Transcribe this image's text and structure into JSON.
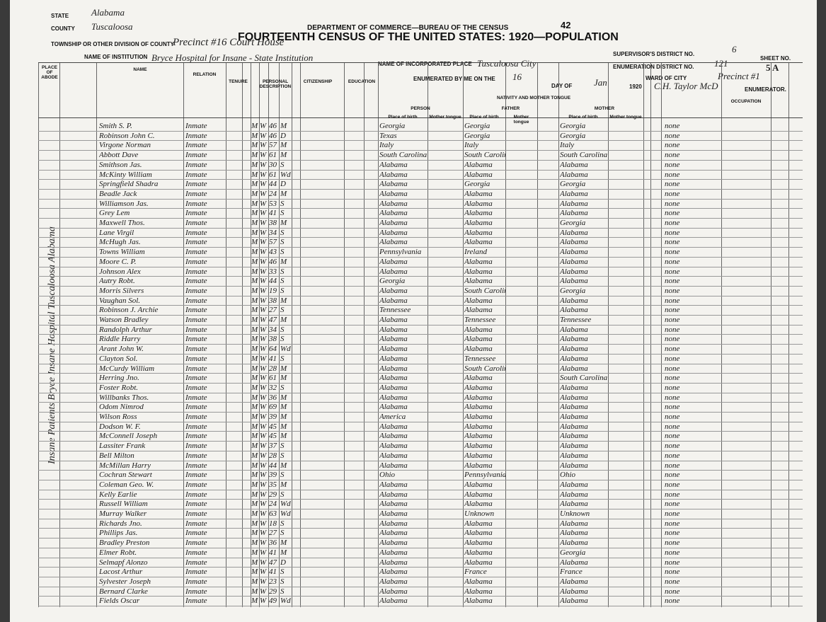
{
  "header": {
    "state_label": "STATE",
    "state": "Alabama",
    "county_label": "COUNTY",
    "county": "Tuscaloosa",
    "township_label": "TOWNSHIP OR OTHER DIVISION OF COUNTY",
    "township": "Precinct #16 Court House",
    "institution_label": "NAME OF INSTITUTION",
    "institution": "Bryce Hospital for Insane - State Institution",
    "department": "DEPARTMENT OF COMMERCE—BUREAU OF THE CENSUS",
    "title": "FOURTEENTH CENSUS OF THE UNITED STATES: 1920—POPULATION",
    "page_number": "42",
    "place_label": "NAME OF INCORPORATED PLACE",
    "place": "Tuscaloosa City",
    "enumerated_label": "ENUMERATED BY ME ON THE",
    "day": "16",
    "day_of_label": "DAY OF",
    "month": "Jan",
    "year": "1920",
    "supervisor_label": "SUPERVISOR'S DISTRICT NO.",
    "supervisor": "6",
    "enumeration_label": "ENUMERATION DISTRICT NO.",
    "enumeration": "121",
    "sheet_label": "SHEET NO.",
    "sheet": "5 A",
    "ward_label": "WARD OF CITY",
    "ward": "Precinct #1",
    "enumerator": "C.H. Taylor McD",
    "enumerator_label": "ENUMERATOR."
  },
  "columns": {
    "abode": "PLACE OF ABODE",
    "name": "NAME",
    "relation": "RELATION",
    "tenure": "TENURE",
    "personal": "PERSONAL DESCRIPTION",
    "citizenship": "CITIZENSHIP",
    "education": "EDUCATION",
    "nativity": "NATIVITY AND MOTHER TONGUE",
    "person": "PERSON",
    "father": "FATHER",
    "mother": "MOTHER",
    "place_of_birth": "Place of birth",
    "mother_tongue": "Mother tongue",
    "occupation": "OCCUPATION"
  },
  "side_note": "Insane Patients Bryce Insane Hospital Tuscaloosa Alabama",
  "rows": [
    [
      "Smith S. P.",
      "Inmate",
      "M",
      "W",
      "46",
      "M",
      "Georgia",
      "Georgia",
      "Georgia",
      "none"
    ],
    [
      "Robinson John C.",
      "Inmate",
      "M",
      "W",
      "46",
      "D",
      "Texas",
      "Georgia",
      "Georgia",
      "none"
    ],
    [
      "Virgone Norman",
      "Inmate",
      "M",
      "W",
      "57",
      "M",
      "Italy",
      "Italy",
      "Italy",
      "none"
    ],
    [
      "Abbott Dave",
      "Inmate",
      "M",
      "W",
      "61",
      "M",
      "South Carolina",
      "South Carolina",
      "South Carolina",
      "none"
    ],
    [
      "Smithson Jas.",
      "Inmate",
      "M",
      "W",
      "30",
      "S",
      "Alabama",
      "Alabama",
      "Alabama",
      "none"
    ],
    [
      "McKinty William",
      "Inmate",
      "M",
      "W",
      "61",
      "Wd",
      "Alabama",
      "Alabama",
      "Alabama",
      "none"
    ],
    [
      "Springfield Shadra",
      "Inmate",
      "M",
      "W",
      "44",
      "D",
      "Alabama",
      "Georgia",
      "Georgia",
      "none"
    ],
    [
      "Beadle Jack",
      "Inmate",
      "M",
      "W",
      "24",
      "M",
      "Alabama",
      "Alabama",
      "Alabama",
      "none"
    ],
    [
      "Williamson Jas.",
      "Inmate",
      "M",
      "W",
      "53",
      "S",
      "Alabama",
      "Alabama",
      "Alabama",
      "none"
    ],
    [
      "Grey Lem",
      "Inmate",
      "M",
      "W",
      "41",
      "S",
      "Alabama",
      "Alabama",
      "Alabama",
      "none"
    ],
    [
      "Maxwell Thos.",
      "Inmate",
      "M",
      "W",
      "38",
      "M",
      "Alabama",
      "Alabama",
      "Georgia",
      "none"
    ],
    [
      "Lane Virgil",
      "Inmate",
      "M",
      "W",
      "34",
      "S",
      "Alabama",
      "Alabama",
      "Alabama",
      "none"
    ],
    [
      "McHugh Jas.",
      "Inmate",
      "M",
      "W",
      "57",
      "S",
      "Alabama",
      "Alabama",
      "Alabama",
      "none"
    ],
    [
      "Towns William",
      "Inmate",
      "M",
      "W",
      "43",
      "S",
      "Pennsylvania",
      "Ireland",
      "Alabama",
      "none"
    ],
    [
      "Moore C. P.",
      "Inmate",
      "M",
      "W",
      "46",
      "M",
      "Alabama",
      "Alabama",
      "Alabama",
      "none"
    ],
    [
      "Johnson Alex",
      "Inmate",
      "M",
      "W",
      "33",
      "S",
      "Alabama",
      "Alabama",
      "Alabama",
      "none"
    ],
    [
      "Autry Robt.",
      "Inmate",
      "M",
      "W",
      "44",
      "S",
      "Georgia",
      "Alabama",
      "Alabama",
      "none"
    ],
    [
      "Morris Silvers",
      "Inmate",
      "M",
      "W",
      "19",
      "S",
      "Alabama",
      "South Carolina",
      "Georgia",
      "none"
    ],
    [
      "Vaughan Sol.",
      "Inmate",
      "M",
      "W",
      "38",
      "M",
      "Alabama",
      "Alabama",
      "Alabama",
      "none"
    ],
    [
      "Robinson J. Archie",
      "Inmate",
      "M",
      "W",
      "27",
      "S",
      "Tennessee",
      "Alabama",
      "Alabama",
      "none"
    ],
    [
      "Watson Bradley",
      "Inmate",
      "M",
      "W",
      "47",
      "M",
      "Alabama",
      "Tennessee",
      "Tennessee",
      "none"
    ],
    [
      "Randolph Arthur",
      "Inmate",
      "M",
      "W",
      "34",
      "S",
      "Alabama",
      "Alabama",
      "Alabama",
      "none"
    ],
    [
      "Riddle Harry",
      "Inmate",
      "M",
      "W",
      "38",
      "S",
      "Alabama",
      "Alabama",
      "Alabama",
      "none"
    ],
    [
      "Arant John W.",
      "Inmate",
      "M",
      "W",
      "64",
      "Wd",
      "Alabama",
      "Alabama",
      "Alabama",
      "none"
    ],
    [
      "Clayton Sol.",
      "Inmate",
      "M",
      "W",
      "41",
      "S",
      "Alabama",
      "Tennessee",
      "Alabama",
      "none"
    ],
    [
      "McCurdy William",
      "Inmate",
      "M",
      "W",
      "28",
      "M",
      "Alabama",
      "South Carolina",
      "Alabama",
      "none"
    ],
    [
      "Herring Jno.",
      "Inmate",
      "M",
      "W",
      "61",
      "M",
      "Alabama",
      "Alabama",
      "South Carolina",
      "none"
    ],
    [
      "Foster Robt.",
      "Inmate",
      "M",
      "W",
      "32",
      "S",
      "Alabama",
      "Alabama",
      "Alabama",
      "none"
    ],
    [
      "Willbanks Thos.",
      "Inmate",
      "M",
      "W",
      "36",
      "M",
      "Alabama",
      "Alabama",
      "Alabama",
      "none"
    ],
    [
      "Odom Nimrod",
      "Inmate",
      "M",
      "W",
      "69",
      "M",
      "Alabama",
      "Alabama",
      "Alabama",
      "none"
    ],
    [
      "Wilson Ross",
      "Inmate",
      "M",
      "W",
      "39",
      "M",
      "America",
      "Alabama",
      "Alabama",
      "none"
    ],
    [
      "Dodson W. F.",
      "Inmate",
      "M",
      "W",
      "45",
      "M",
      "Alabama",
      "Alabama",
      "Alabama",
      "none"
    ],
    [
      "McConnell Joseph",
      "Inmate",
      "M",
      "W",
      "45",
      "M",
      "Alabama",
      "Alabama",
      "Alabama",
      "none"
    ],
    [
      "Lassiter Frank",
      "Inmate",
      "M",
      "W",
      "37",
      "S",
      "Alabama",
      "Alabama",
      "Alabama",
      "none"
    ],
    [
      "Bell Milton",
      "Inmate",
      "M",
      "W",
      "28",
      "S",
      "Alabama",
      "Alabama",
      "Alabama",
      "none"
    ],
    [
      "McMillan Harry",
      "Inmate",
      "M",
      "W",
      "44",
      "M",
      "Alabama",
      "Alabama",
      "Alabama",
      "none"
    ],
    [
      "Cochran Stewart",
      "Inmate",
      "M",
      "W",
      "39",
      "S",
      "Ohio",
      "Pennsylvania",
      "Ohio",
      "none"
    ],
    [
      "Coleman Geo. W.",
      "Inmate",
      "M",
      "W",
      "35",
      "M",
      "Alabama",
      "Alabama",
      "Alabama",
      "none"
    ],
    [
      "Kelly Earlie",
      "Inmate",
      "M",
      "W",
      "29",
      "S",
      "Alabama",
      "Alabama",
      "Alabama",
      "none"
    ],
    [
      "Russell William",
      "Inmate",
      "M",
      "W",
      "24",
      "Wd",
      "Alabama",
      "Alabama",
      "Alabama",
      "none"
    ],
    [
      "Murray Walker",
      "Inmate",
      "M",
      "W",
      "63",
      "Wd",
      "Alabama",
      "Unknown",
      "Unknown",
      "none"
    ],
    [
      "Richards Jno.",
      "Inmate",
      "M",
      "W",
      "18",
      "S",
      "Alabama",
      "Alabama",
      "Alabama",
      "none"
    ],
    [
      "Phillips Jas.",
      "Inmate",
      "M",
      "W",
      "27",
      "S",
      "Alabama",
      "Alabama",
      "Alabama",
      "none"
    ],
    [
      "Bradley Preston",
      "Inmate",
      "M",
      "W",
      "36",
      "M",
      "Alabama",
      "Alabama",
      "Alabama",
      "none"
    ],
    [
      "Elmer Robt.",
      "Inmate",
      "M",
      "W",
      "41",
      "M",
      "Alabama",
      "Alabama",
      "Georgia",
      "none"
    ],
    [
      "Selmapf Alonzo",
      "Inmate",
      "M",
      "W",
      "47",
      "D",
      "Alabama",
      "Alabama",
      "Alabama",
      "none"
    ],
    [
      "Lacost Arthur",
      "Inmate",
      "M",
      "W",
      "41",
      "S",
      "Alabama",
      "France",
      "France",
      "none"
    ],
    [
      "Sylvester Joseph",
      "Inmate",
      "M",
      "W",
      "23",
      "S",
      "Alabama",
      "Alabama",
      "Alabama",
      "none"
    ],
    [
      "Bernard Clarke",
      "Inmate",
      "M",
      "W",
      "29",
      "S",
      "Alabama",
      "Alabama",
      "Alabama",
      "none"
    ],
    [
      "Fields Oscar",
      "Inmate",
      "M",
      "W",
      "49",
      "Wd",
      "Alabama",
      "Alabama",
      "Alabama",
      "none"
    ]
  ]
}
